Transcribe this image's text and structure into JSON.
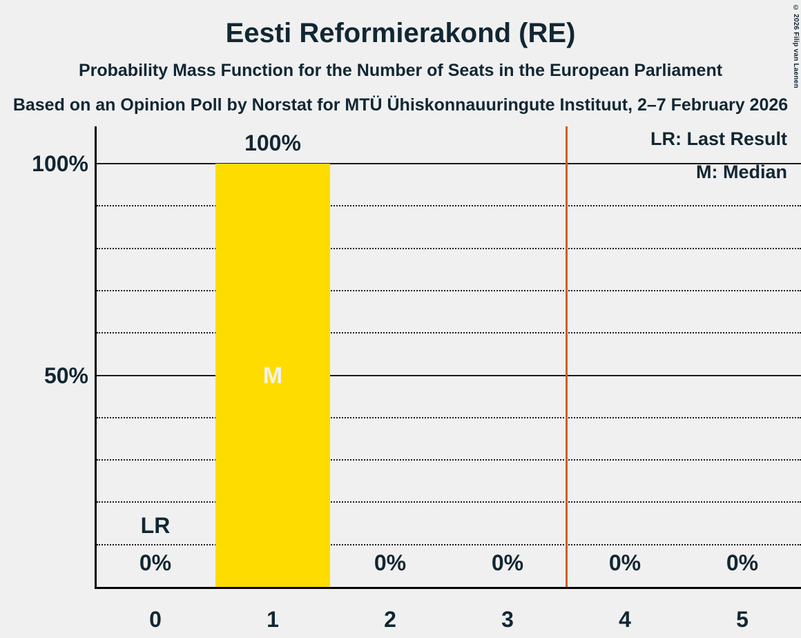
{
  "chart_data": {
    "type": "bar",
    "title": "Eesti Reformierakond (RE)",
    "subtitle": "Probability Mass Function for the Number of Seats in the European Parliament",
    "source": "Based on an Opinion Poll by Norstat for MTÜ Ühiskonnauuringute Instituut, 2–7 February 2026",
    "copyright": "© 2026 Filip van Laenen",
    "categories": [
      "0",
      "1",
      "2",
      "3",
      "4",
      "5"
    ],
    "values": [
      0,
      100,
      0,
      0,
      0,
      0
    ],
    "value_labels": [
      "0%",
      "100%",
      "0%",
      "0%",
      "0%",
      "0%"
    ],
    "xlabel": "",
    "ylabel": "",
    "ylim": [
      0,
      100
    ],
    "yticks": [
      {
        "value": 100,
        "label": "100%"
      },
      {
        "value": 50,
        "label": "50%"
      }
    ],
    "gridlines": {
      "minor_values": [
        10,
        20,
        30,
        40,
        60,
        70,
        80,
        90
      ],
      "solid_values": [
        50,
        100
      ]
    },
    "legend": [
      "LR: Last Result",
      "M: Median"
    ],
    "legend_position": "top-right",
    "markers": {
      "median_category_index": 1,
      "median_label": "M",
      "last_result_category_index": 0,
      "last_result_label": "LR"
    },
    "threshold_line_seats": 3.5,
    "colors": {
      "bar": "#FFDC00",
      "threshold_line": "#D55E00",
      "background": "#F0F0F0",
      "text": "#112733",
      "median_label": "#F2F2F2"
    }
  }
}
